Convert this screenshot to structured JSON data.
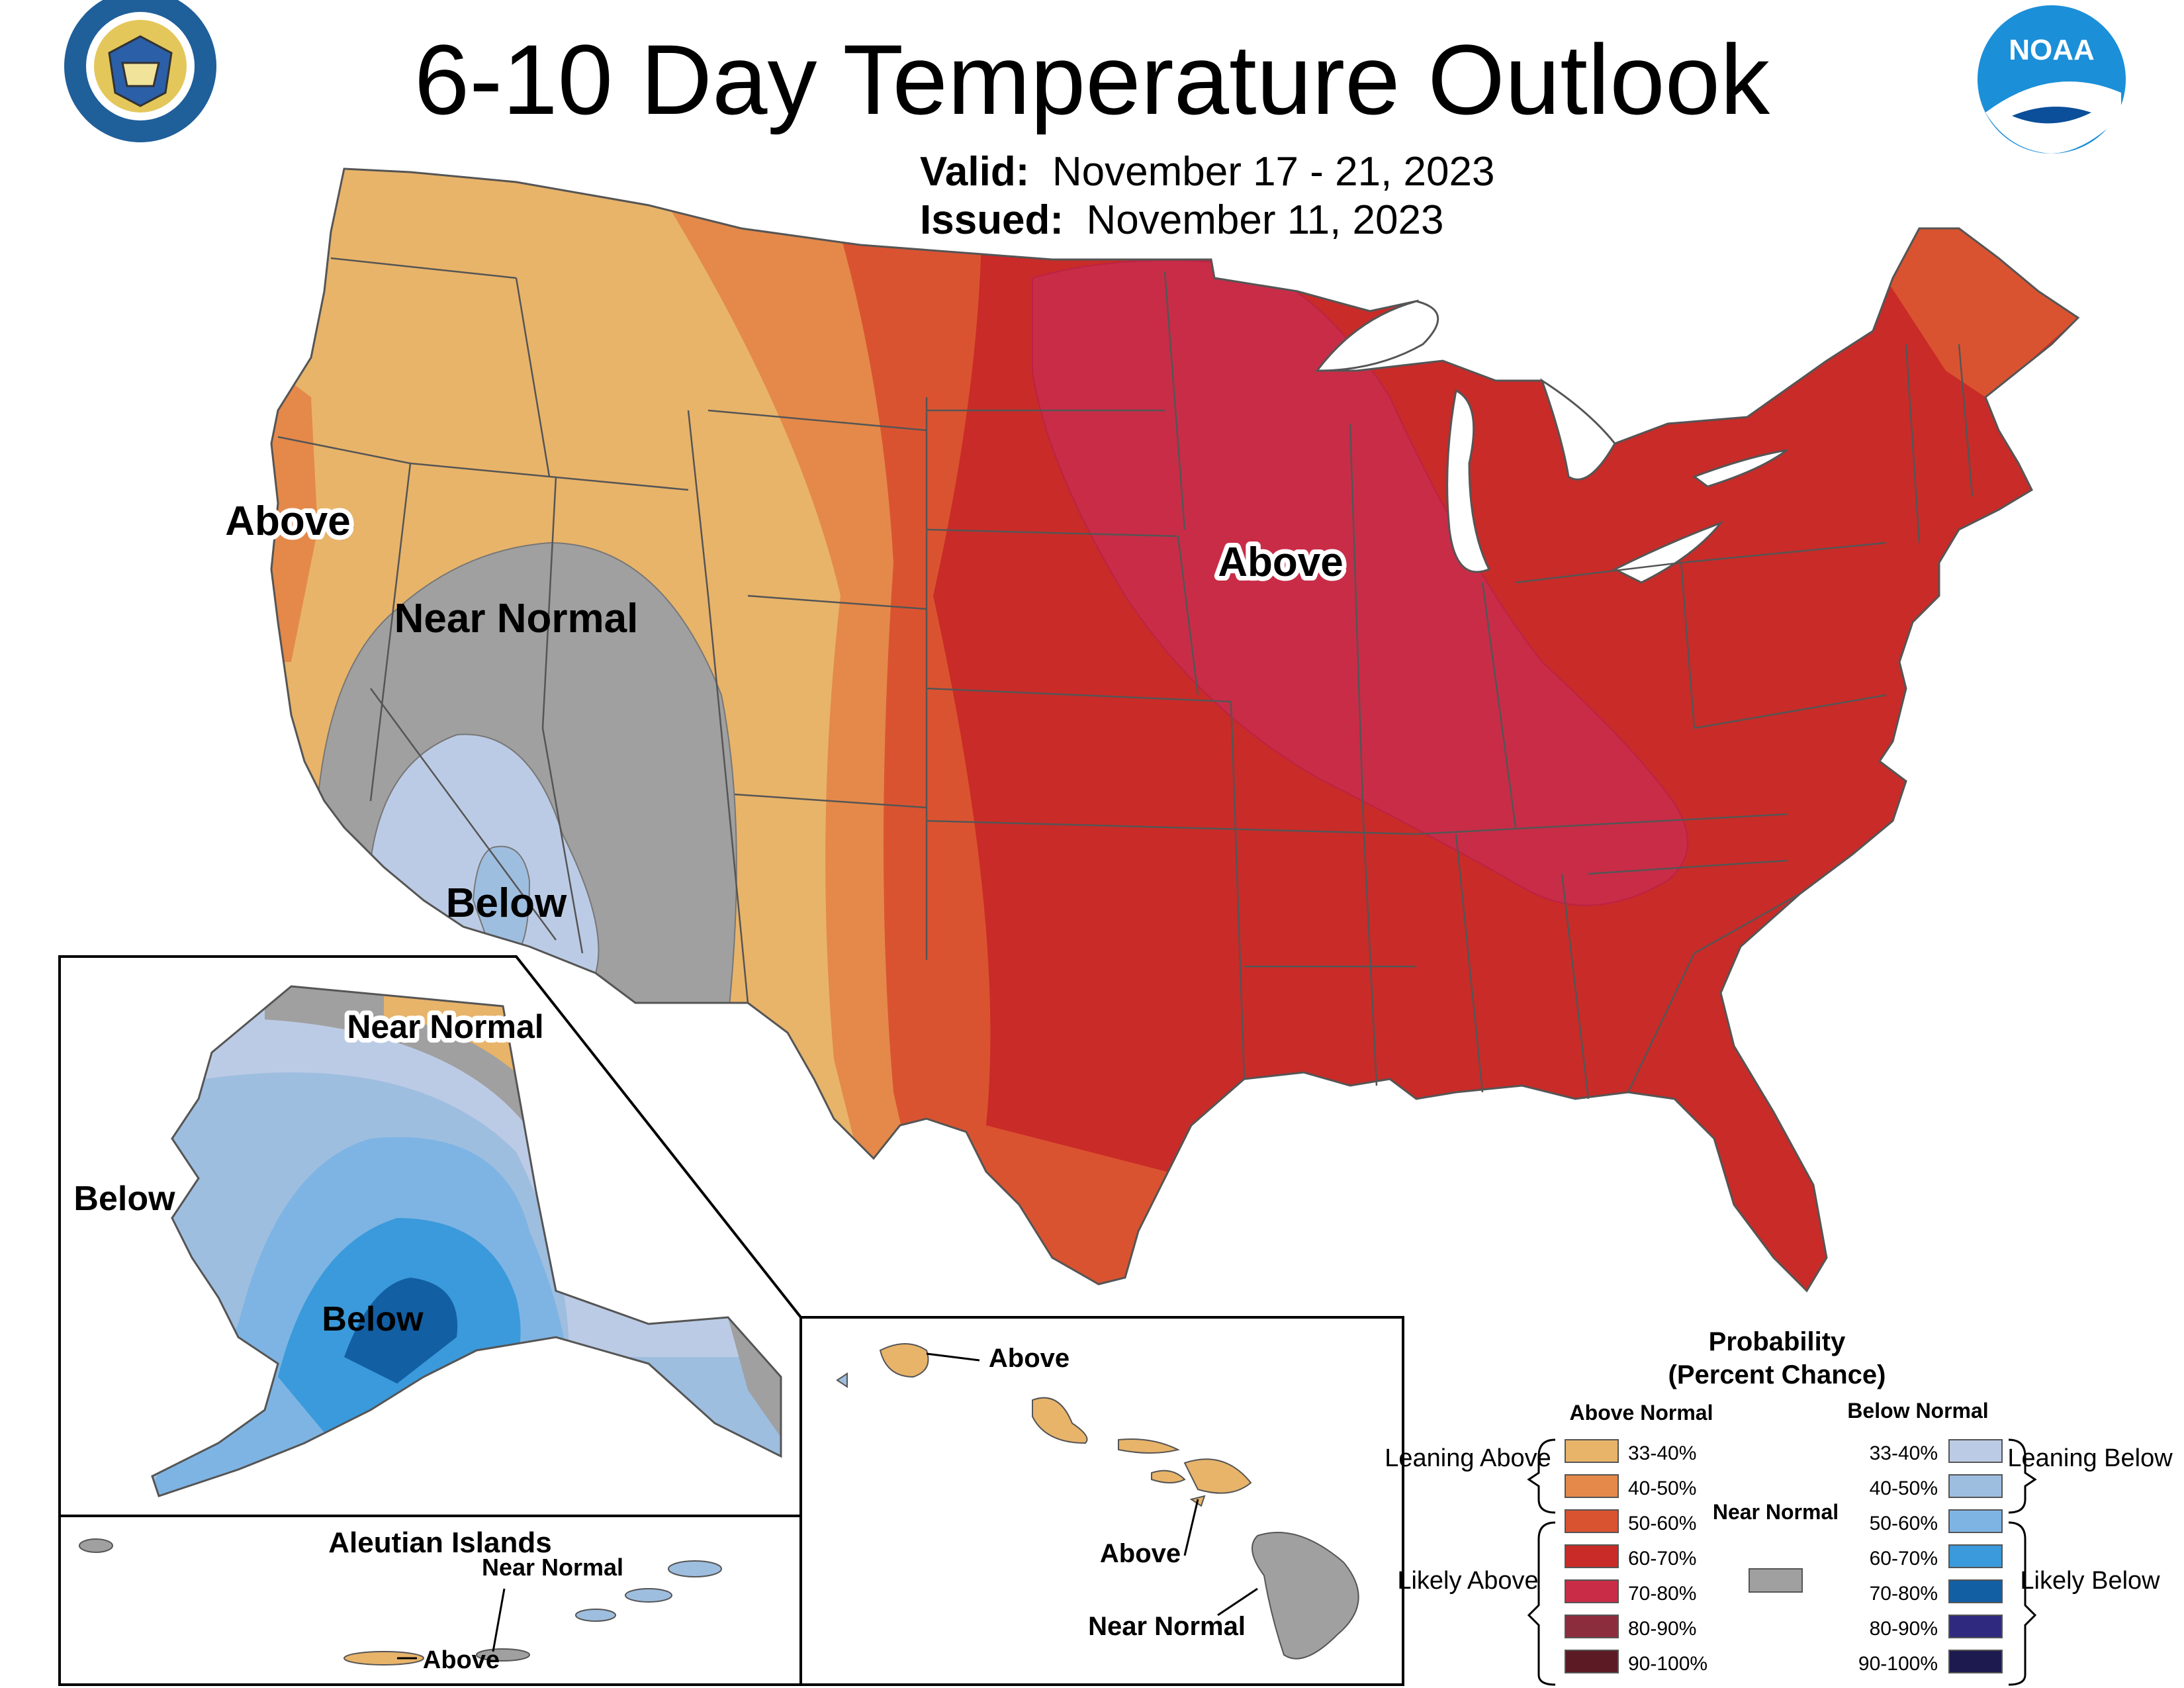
{
  "title": "6-10 Day Temperature Outlook",
  "valid": {
    "label": "Valid:",
    "value": "November 17 - 21, 2023"
  },
  "issued": {
    "label": "Issued:",
    "value": "November 11, 2023"
  },
  "logos": {
    "left": "department-of-commerce-seal",
    "right": "noaa-logo",
    "right_text": "NOAA"
  },
  "conus_labels": {
    "above_west": "Above",
    "near_normal": "Near Normal",
    "below": "Below",
    "above_central": "Above"
  },
  "alaska_labels": {
    "near_normal": "Near Normal",
    "below_west": "Below",
    "below_south": "Below"
  },
  "aleutian": {
    "title": "Aleutian Islands",
    "near_normal": "Near Normal",
    "above": "Above"
  },
  "hawaii_labels": {
    "above_kauai": "Above",
    "above_maui": "Above",
    "near_normal": "Near Normal"
  },
  "legend": {
    "title_line1": "Probability",
    "title_line2": "(Percent Chance)",
    "above_header": "Above Normal",
    "below_header": "Below Normal",
    "near_normal": "Near Normal",
    "leaning_above": "Leaning Above",
    "likely_above": "Likely Above",
    "leaning_below": "Leaning Below",
    "likely_below": "Likely Below",
    "above_classes": [
      {
        "range": "33-40%",
        "color": "#E8B46A"
      },
      {
        "range": "40-50%",
        "color": "#E4894A"
      },
      {
        "range": "50-60%",
        "color": "#DA5330"
      },
      {
        "range": "60-70%",
        "color": "#C92B28"
      },
      {
        "range": "70-80%",
        "color": "#C92C47"
      },
      {
        "range": "80-90%",
        "color": "#8C2D3E"
      },
      {
        "range": "90-100%",
        "color": "#5C1A24"
      }
    ],
    "below_classes": [
      {
        "range": "33-40%",
        "color": "#BCCBE5"
      },
      {
        "range": "40-50%",
        "color": "#9EBEE0"
      },
      {
        "range": "50-60%",
        "color": "#7EB4E3"
      },
      {
        "range": "60-70%",
        "color": "#3A9ADB"
      },
      {
        "range": "70-80%",
        "color": "#125FA3"
      },
      {
        "range": "80-90%",
        "color": "#2F2A7F"
      },
      {
        "range": "90-100%",
        "color": "#1C1A4F"
      }
    ],
    "near_color": "#A0A0A0"
  }
}
